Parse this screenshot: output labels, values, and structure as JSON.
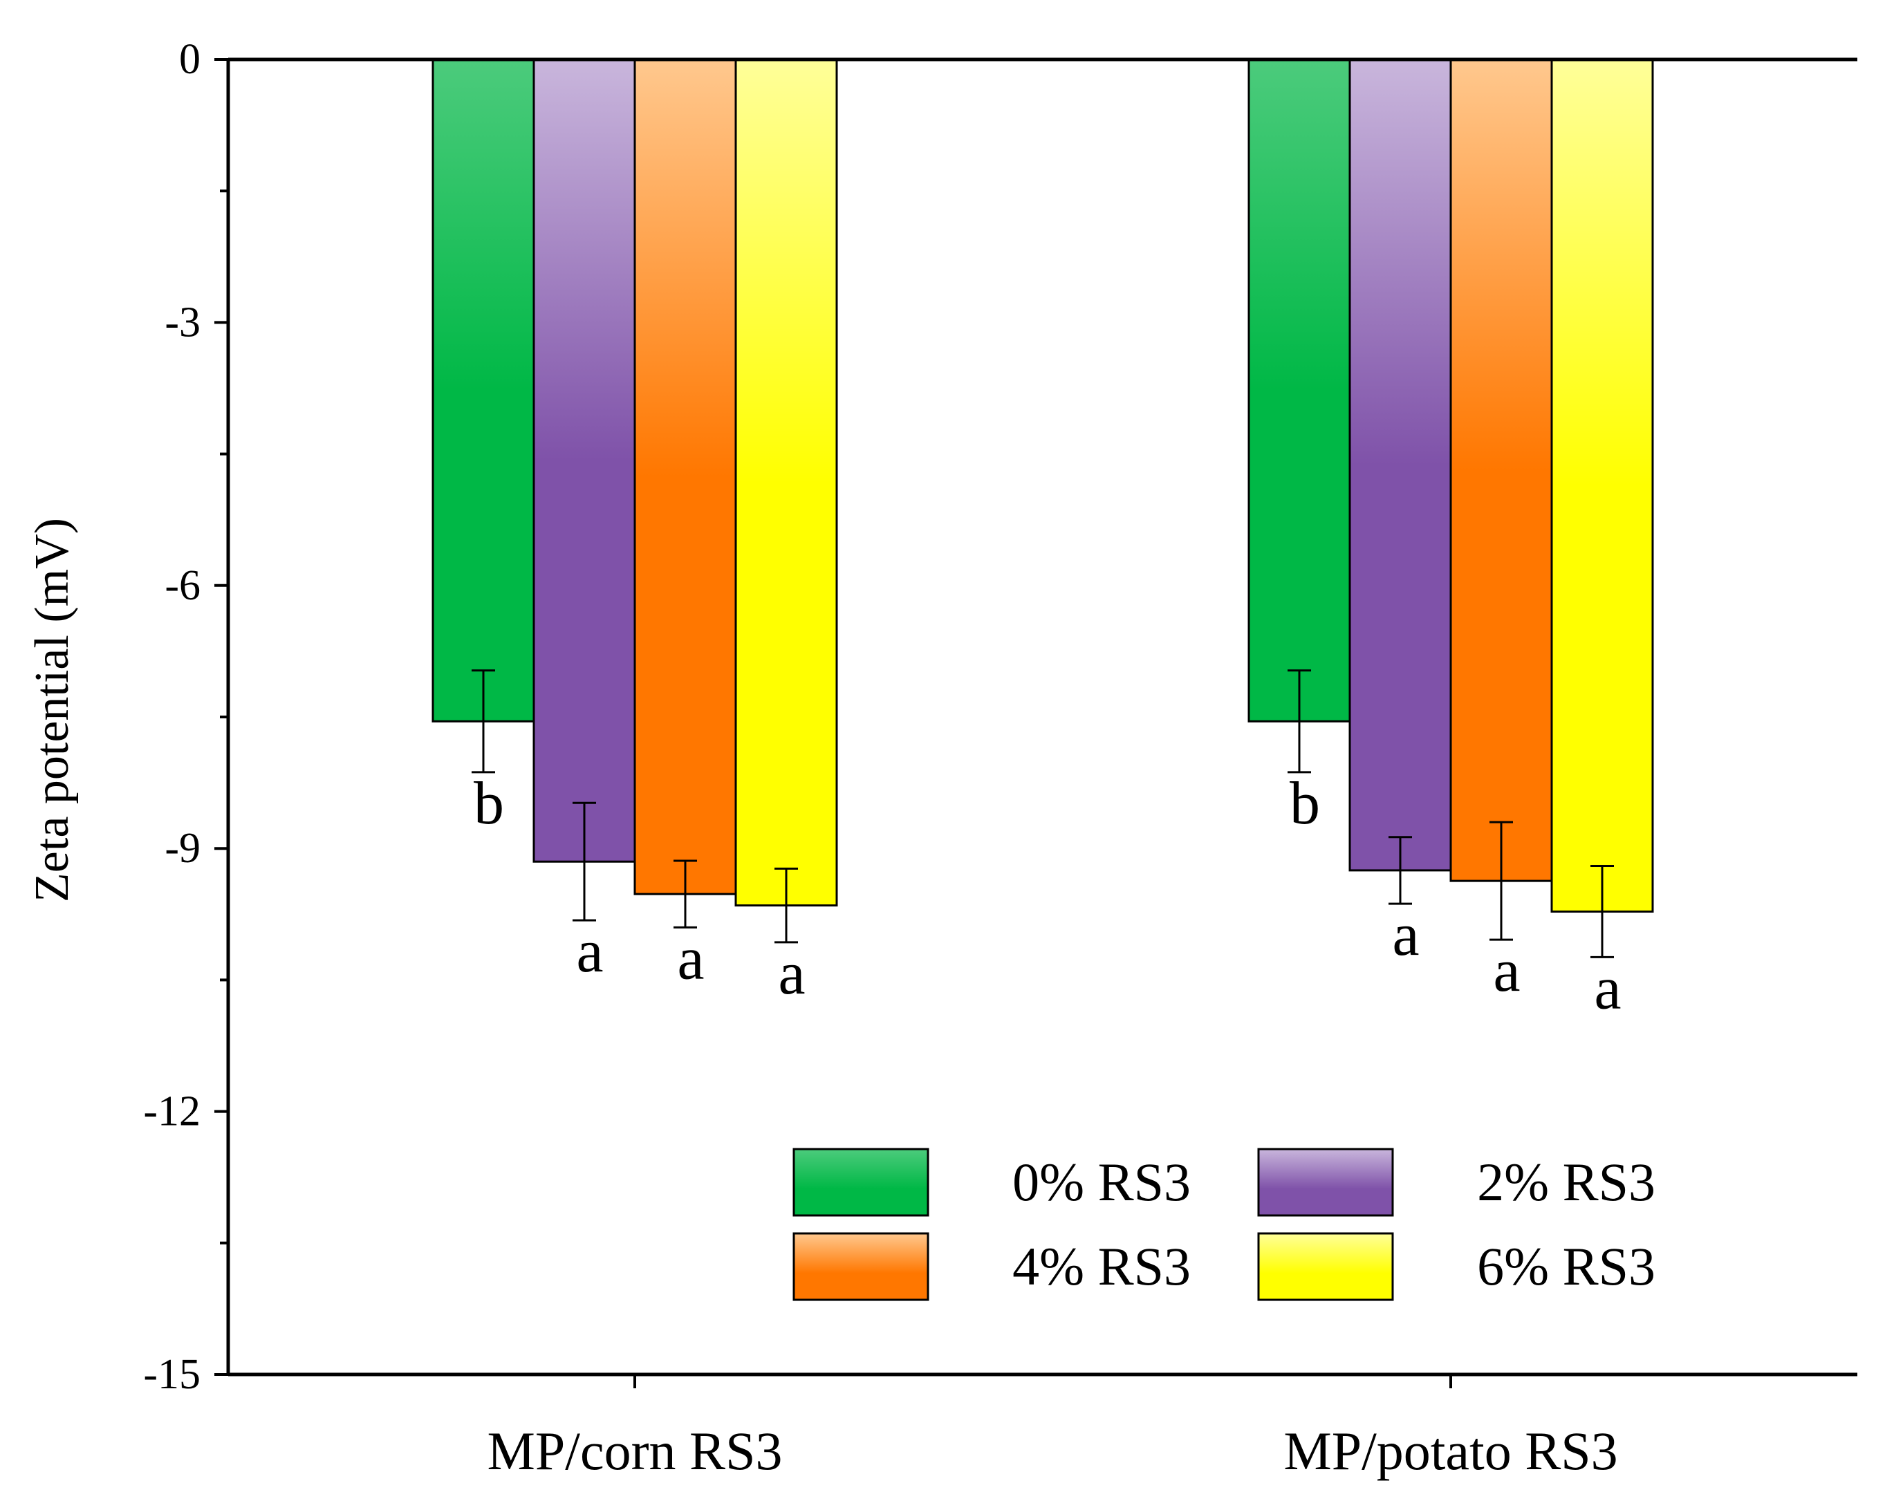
{
  "chart_data": {
    "type": "bar",
    "title": "",
    "xlabel": "",
    "ylabel": "Zeta potential (mV)",
    "ylim": [
      -15,
      0
    ],
    "yticks": [
      0,
      -3,
      -6,
      -9,
      -12,
      -15
    ],
    "ytick_labels": [
      "0",
      "-3",
      "-6",
      "-9",
      "-12",
      "-15"
    ],
    "categories": [
      "MP/corn RS3",
      "MP/potato RS3"
    ],
    "series": [
      {
        "name": "0% RS3",
        "values": [
          -7.55,
          -7.55
        ],
        "errors": [
          0.58,
          0.58
        ],
        "letters": [
          "b",
          "b"
        ]
      },
      {
        "name": "2% RS3",
        "values": [
          -9.15,
          -9.25
        ],
        "errors": [
          0.67,
          0.38
        ],
        "letters": [
          "a",
          "a"
        ]
      },
      {
        "name": "4% RS3",
        "values": [
          -9.52,
          -9.37
        ],
        "errors": [
          0.38,
          0.67
        ],
        "letters": [
          "a",
          "a"
        ]
      },
      {
        "name": "6% RS3",
        "values": [
          -9.65,
          -9.72
        ],
        "errors": [
          0.42,
          0.52
        ],
        "letters": [
          "a",
          "a"
        ]
      }
    ],
    "colors": [
      {
        "light": "#4ccb7c",
        "dark": "#00b846"
      },
      {
        "light": "#c9b6dc",
        "dark": "#7f52a9"
      },
      {
        "light": "#ffc88e",
        "dark": "#ff7700"
      },
      {
        "light": "#ffff99",
        "dark": "#ffff00"
      }
    ],
    "legend_position": "bottom-right",
    "grid": false
  }
}
